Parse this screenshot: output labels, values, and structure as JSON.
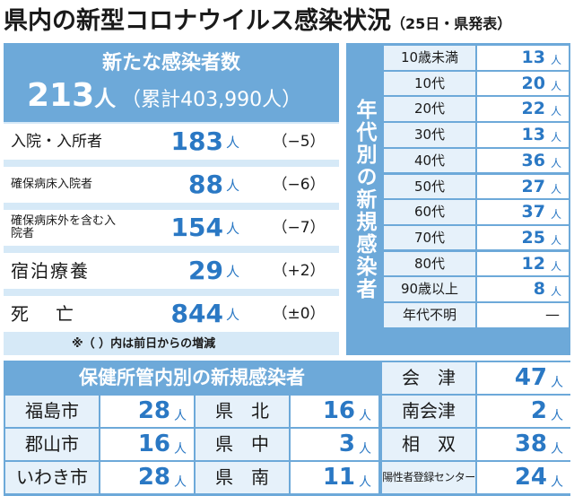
{
  "title": "県内の新型コロナウイルス感染状況",
  "subtitle": "（25日・県発表）",
  "new_cases": {
    "label": "新たな感染者数",
    "total": "213",
    "unit": "人",
    "cumulative": "（累計403,990人）"
  },
  "status_rows": [
    {
      "label": "入院・入所者",
      "value": "183",
      "unit": "人",
      "change": "（−5）"
    },
    {
      "label": "確保病床入院者",
      "value": "88",
      "unit": "人",
      "change": "（−6）"
    },
    {
      "label": "確保病床外を含む入院者",
      "value": "154",
      "unit": "人",
      "change": "（−7）"
    },
    {
      "label": "宿泊療養",
      "value": "29",
      "unit": "人",
      "change": "（+2）"
    },
    {
      "label": "死亡",
      "value": "844",
      "unit": "人",
      "change": "（±0）"
    }
  ],
  "note": "※（ ）内は前日からの増減",
  "age": {
    "label": "年代別の新規感染者",
    "rows": [
      {
        "cat": "10歳未満",
        "value": "13",
        "unit": "人"
      },
      {
        "cat": "10代",
        "value": "20",
        "unit": "人"
      },
      {
        "cat": "20代",
        "value": "22",
        "unit": "人"
      },
      {
        "cat": "30代",
        "value": "13",
        "unit": "人"
      },
      {
        "cat": "40代",
        "value": "36",
        "unit": "人"
      },
      {
        "cat": "50代",
        "value": "27",
        "unit": "人"
      },
      {
        "cat": "60代",
        "value": "37",
        "unit": "人"
      },
      {
        "cat": "70代",
        "value": "25",
        "unit": "人"
      },
      {
        "cat": "80代",
        "value": "12",
        "unit": "人"
      },
      {
        "cat": "90歳以上",
        "value": "8",
        "unit": "人"
      },
      {
        "cat": "年代不明",
        "value": "—",
        "unit": ""
      }
    ]
  },
  "health_centers": {
    "label": "保健所管内別の新規感染者",
    "cells": [
      {
        "name": "会　津",
        "value": "47",
        "unit": "人"
      },
      {
        "name": "福島市",
        "value": "28",
        "unit": "人"
      },
      {
        "name": "県　北",
        "value": "16",
        "unit": "人"
      },
      {
        "name": "南会津",
        "value": "2",
        "unit": "人"
      },
      {
        "name": "郡山市",
        "value": "16",
        "unit": "人"
      },
      {
        "name": "県　中",
        "value": "3",
        "unit": "人"
      },
      {
        "name": "相　双",
        "value": "38",
        "unit": "人"
      },
      {
        "name": "いわき市",
        "value": "28",
        "unit": "人"
      },
      {
        "name": "県　南",
        "value": "11",
        "unit": "人"
      },
      {
        "name": "陽性者登録センター",
        "value": "24",
        "unit": "人"
      }
    ]
  }
}
